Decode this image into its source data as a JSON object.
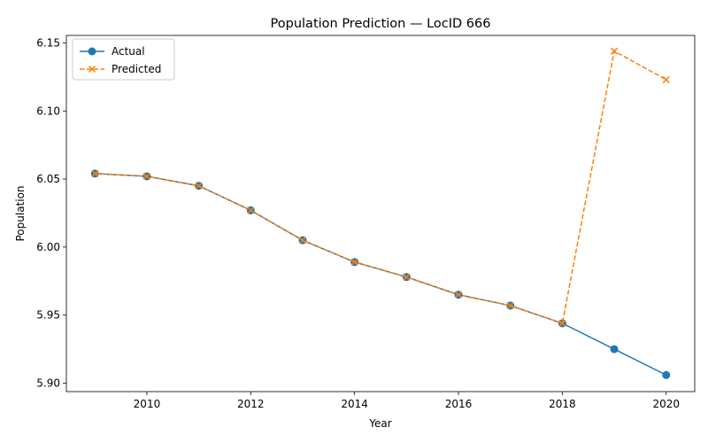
{
  "chart_data": {
    "type": "line",
    "title": "Population Prediction — LocID 666",
    "xlabel": "Year",
    "ylabel": "Population",
    "xlim": [
      2008.45,
      2020.55
    ],
    "ylim": [
      5.8938,
      6.1555
    ],
    "x_ticks": [
      2010,
      2012,
      2014,
      2016,
      2018,
      2020
    ],
    "x_tick_labels": [
      "2010",
      "2012",
      "2014",
      "2016",
      "2018",
      "2020"
    ],
    "y_ticks": [
      5.9,
      5.95,
      6.0,
      6.05,
      6.1,
      6.15
    ],
    "y_tick_labels": [
      "5.90",
      "5.95",
      "6.00",
      "6.05",
      "6.10",
      "6.15"
    ],
    "grid": false,
    "legend_position": "upper-left",
    "series": [
      {
        "name": "Actual",
        "color": "#1f77b4",
        "line_style": "solid",
        "marker": "circle",
        "x": [
          2009,
          2010,
          2011,
          2012,
          2013,
          2014,
          2015,
          2016,
          2017,
          2018,
          2019,
          2020
        ],
        "y": [
          6.054,
          6.052,
          6.045,
          6.027,
          6.005,
          5.989,
          5.978,
          5.965,
          5.957,
          5.944,
          5.925,
          5.906
        ]
      },
      {
        "name": "Predicted",
        "color": "#ff7f0e",
        "line_style": "dashed",
        "marker": "x",
        "x": [
          2009,
          2010,
          2011,
          2012,
          2013,
          2014,
          2015,
          2016,
          2017,
          2018,
          2019,
          2020
        ],
        "y": [
          6.054,
          6.052,
          6.045,
          6.027,
          6.005,
          5.989,
          5.978,
          5.965,
          5.957,
          5.944,
          6.144,
          6.123
        ]
      }
    ]
  }
}
